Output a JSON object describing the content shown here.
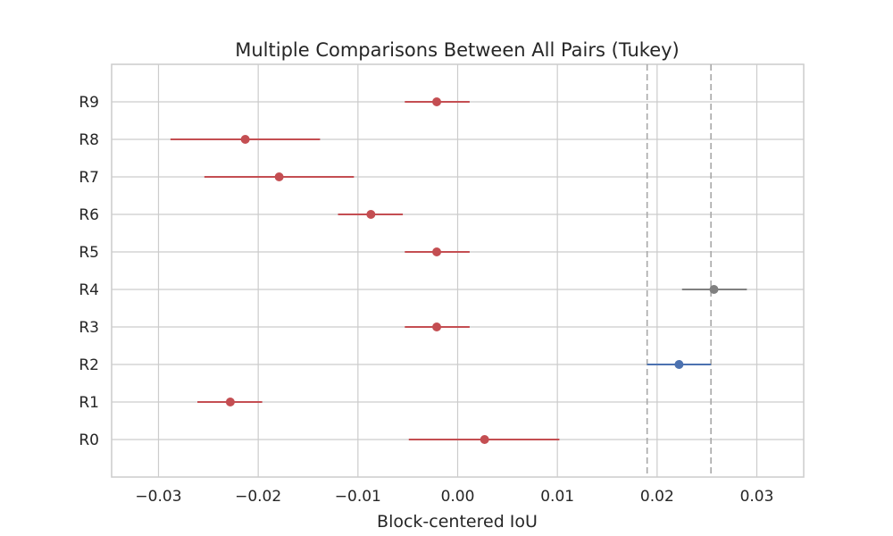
{
  "chart_data": {
    "type": "scatter",
    "title": "Multiple Comparisons Between All Pairs (Tukey)",
    "xlabel": "Block-centered IoU",
    "ylabel": "",
    "xlim": [
      -0.0347,
      0.0347
    ],
    "x_ticks": [
      -0.03,
      -0.02,
      -0.01,
      0.0,
      0.01,
      0.02,
      0.03
    ],
    "x_tick_labels": [
      "−0.03",
      "−0.02",
      "−0.01",
      "0.00",
      "0.01",
      "0.02",
      "0.03"
    ],
    "grid": true,
    "categories": [
      "R0",
      "R1",
      "R2",
      "R3",
      "R4",
      "R5",
      "R6",
      "R7",
      "R8",
      "R9"
    ],
    "series": [
      {
        "values": [
          {
            "label": "R0",
            "mean": 0.0027,
            "lower": -0.0049,
            "upper": 0.0102,
            "color": "#c44e52"
          },
          {
            "label": "R1",
            "mean": -0.0228,
            "lower": -0.0261,
            "upper": -0.0196,
            "color": "#c44e52"
          },
          {
            "label": "R2",
            "mean": 0.0222,
            "lower": 0.019,
            "upper": 0.0254,
            "color": "#4c72b0"
          },
          {
            "label": "R3",
            "mean": -0.0021,
            "lower": -0.0053,
            "upper": 0.0012,
            "color": "#c44e52"
          },
          {
            "label": "R4",
            "mean": 0.0257,
            "lower": 0.0225,
            "upper": 0.029,
            "color": "#808080"
          },
          {
            "label": "R5",
            "mean": -0.0021,
            "lower": -0.0053,
            "upper": 0.0012,
            "color": "#c44e52"
          },
          {
            "label": "R6",
            "mean": -0.0087,
            "lower": -0.012,
            "upper": -0.0055,
            "color": "#c44e52"
          },
          {
            "label": "R7",
            "mean": -0.0179,
            "lower": -0.0254,
            "upper": -0.0104,
            "color": "#c44e52"
          },
          {
            "label": "R8",
            "mean": -0.0213,
            "lower": -0.0288,
            "upper": -0.0138,
            "color": "#c44e52"
          },
          {
            "label": "R9",
            "mean": -0.0021,
            "lower": -0.0053,
            "upper": 0.0012,
            "color": "#c44e52"
          }
        ]
      }
    ],
    "reference_lines": [
      0.019,
      0.0254
    ],
    "colors": {
      "significant_different": "#c44e52",
      "selected_group": "#4c72b0",
      "not_different": "#808080",
      "reference": "#a8a8a8"
    }
  }
}
